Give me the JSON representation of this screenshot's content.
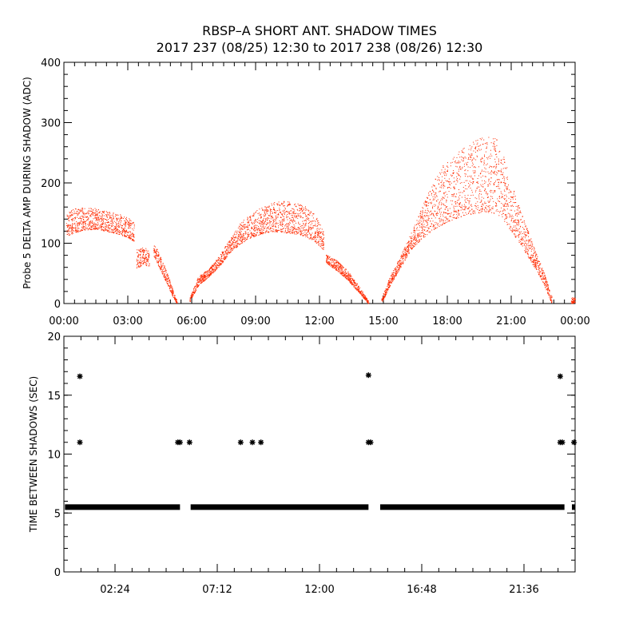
{
  "title": "RBSP–A SHORT ANT. SHADOW TIMES",
  "subtitle": "2017 237 (08/25) 12:30 to 2017 238 (08/26) 12:30",
  "colors": {
    "top_points": "#ff2a00",
    "bottom_points": "#000000",
    "axes": "#000000"
  },
  "chart_data": [
    {
      "type": "scatter",
      "title": "",
      "ylabel": "Probe 5 DELTA AMP DURING SHADOW (ADC)",
      "xlabel": "",
      "x_unit": "hours",
      "xlim": [
        0,
        24
      ],
      "ylim": [
        0,
        400
      ],
      "x_tick_values": [
        0,
        3,
        6,
        9,
        12,
        15,
        18,
        21,
        24
      ],
      "x_tick_labels": [
        "00:00",
        "03:00",
        "06:00",
        "09:00",
        "12:00",
        "15:00",
        "18:00",
        "21:00",
        "00:00"
      ],
      "y_tick_values": [
        0,
        100,
        200,
        300,
        400
      ],
      "y_tick_labels": [
        "0",
        "100",
        "200",
        "300",
        "400"
      ],
      "grid": false,
      "series": [
        {
          "color": "#ff2a00",
          "marker": "dot",
          "description_points": [],
          "bands": [
            {
              "x": [
                0.1,
                0.5,
                1.0,
                1.5,
                2.0,
                2.5,
                3.0,
                3.3
              ],
              "lower": [
                112,
                118,
                122,
                124,
                120,
                116,
                110,
                103
              ],
              "upper": [
                150,
                158,
                160,
                158,
                155,
                150,
                143,
                134
              ]
            },
            {
              "x": [
                3.4,
                3.7,
                4.0
              ],
              "lower": [
                58,
                65,
                62
              ],
              "upper": [
                90,
                95,
                88
              ]
            },
            {
              "x": [
                4.2,
                4.5,
                4.8,
                5.1,
                5.3
              ],
              "lower": [
                80,
                58,
                35,
                12,
                0
              ],
              "upper": [
                102,
                80,
                55,
                25,
                5
              ]
            },
            {
              "x": [
                5.9,
                6.3,
                6.8,
                7.3,
                7.8,
                8.3,
                8.8,
                9.3,
                9.8,
                10.3,
                10.8,
                11.3,
                11.8,
                12.2
              ],
              "lower": [
                2,
                30,
                45,
                62,
                85,
                100,
                110,
                116,
                120,
                118,
                116,
                112,
                102,
                88
              ],
              "upper": [
                10,
                45,
                58,
                80,
                108,
                135,
                150,
                160,
                168,
                170,
                168,
                162,
                148,
                118
              ]
            },
            {
              "x": [
                12.3,
                12.8,
                13.3,
                13.8,
                14.3
              ],
              "lower": [
                68,
                55,
                40,
                20,
                0
              ],
              "upper": [
                82,
                72,
                55,
                32,
                4
              ]
            },
            {
              "x": [
                14.9,
                15.3,
                15.8,
                16.3,
                16.8,
                17.3,
                17.8,
                18.3,
                18.8,
                19.3,
                19.8,
                20.2,
                20.6,
                21.0,
                21.5,
                22.0,
                22.5,
                22.9
              ],
              "lower": [
                0,
                30,
                60,
                90,
                108,
                122,
                132,
                140,
                146,
                150,
                152,
                150,
                140,
                120,
                95,
                65,
                35,
                0
              ],
              "upper": [
                10,
                45,
                80,
                118,
                160,
                200,
                230,
                245,
                260,
                272,
                282,
                285,
                250,
                200,
                150,
                100,
                55,
                12
              ]
            },
            {
              "x": [
                23.8,
                24.0
              ],
              "lower": [
                0,
                2
              ],
              "upper": [
                10,
                12
              ]
            }
          ]
        }
      ]
    },
    {
      "type": "scatter",
      "title": "",
      "ylabel": "TIME BETWEEN SHADOWS (SEC)",
      "xlabel": "",
      "x_unit": "hours",
      "xlim": [
        0,
        24
      ],
      "ylim": [
        0,
        20
      ],
      "x_tick_values": [
        2.4,
        7.2,
        12.0,
        16.8,
        21.6
      ],
      "x_tick_labels": [
        "02:24",
        "07:12",
        "12:00",
        "16:48",
        "21:36"
      ],
      "y_tick_values": [
        0,
        5,
        10,
        15,
        20
      ],
      "y_tick_labels": [
        "0",
        "5",
        "10",
        "15",
        "20"
      ],
      "grid": false,
      "series": [
        {
          "color": "#000000",
          "marker": "asterisk",
          "baseline": {
            "y": 5.5,
            "segments": [
              [
                0.05,
                5.45
              ],
              [
                5.95,
                14.3
              ],
              [
                14.85,
                23.5
              ],
              [
                23.85,
                24.0
              ]
            ]
          },
          "points": [
            {
              "x": 0.75,
              "y": 16.6
            },
            {
              "x": 0.75,
              "y": 11.0
            },
            {
              "x": 5.35,
              "y": 11.0
            },
            {
              "x": 5.45,
              "y": 11.0
            },
            {
              "x": 5.9,
              "y": 11.0
            },
            {
              "x": 8.3,
              "y": 11.0
            },
            {
              "x": 8.85,
              "y": 11.0
            },
            {
              "x": 9.25,
              "y": 11.0
            },
            {
              "x": 14.3,
              "y": 16.7
            },
            {
              "x": 14.3,
              "y": 11.0
            },
            {
              "x": 14.4,
              "y": 11.0
            },
            {
              "x": 23.3,
              "y": 16.6
            },
            {
              "x": 23.3,
              "y": 11.0
            },
            {
              "x": 23.4,
              "y": 11.0
            },
            {
              "x": 23.95,
              "y": 11.0
            }
          ]
        }
      ]
    }
  ]
}
